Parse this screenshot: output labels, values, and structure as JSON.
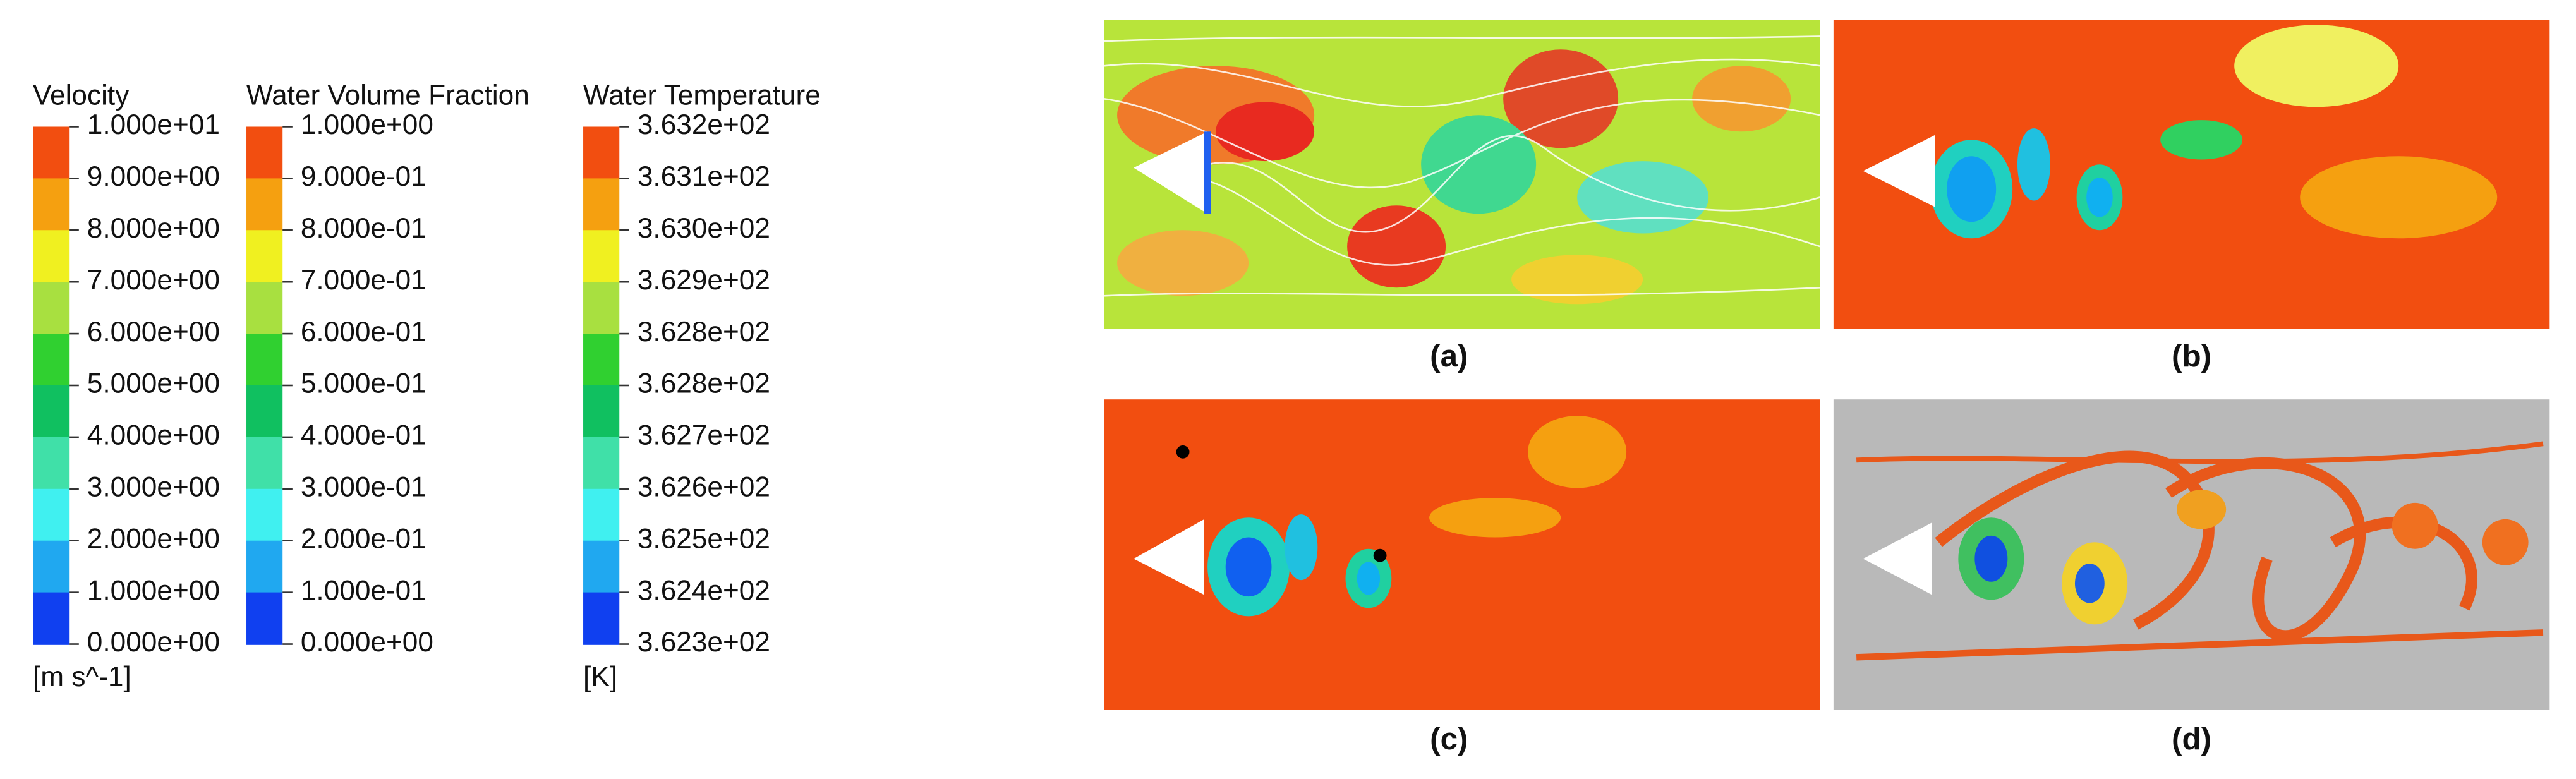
{
  "legends": [
    {
      "title": "Velocity",
      "labels": [
        "1.000e+01",
        "9.000e+00",
        "8.000e+00",
        "7.000e+00",
        "6.000e+00",
        "5.000e+00",
        "4.000e+00",
        "3.000e+00",
        "2.000e+00",
        "1.000e+00",
        "0.000e+00"
      ],
      "unit": "[m s^-1]"
    },
    {
      "title": "Water Volume Fraction",
      "labels": [
        "1.000e+00",
        "9.000e-01",
        "8.000e-01",
        "7.000e-01",
        "6.000e-01",
        "5.000e-01",
        "4.000e-01",
        "3.000e-01",
        "2.000e-01",
        "1.000e-01",
        "0.000e+00"
      ]
    },
    {
      "title": "Water Temperature",
      "labels": [
        "3.632e+02",
        "3.631e+02",
        "3.630e+02",
        "3.629e+02",
        "3.628e+02",
        "3.628e+02",
        "3.627e+02",
        "3.626e+02",
        "3.625e+02",
        "3.624e+02",
        "3.623e+02"
      ],
      "unit": "[K]"
    }
  ],
  "panels": [
    {
      "caption": "(a)"
    },
    {
      "caption": "(b)"
    },
    {
      "caption": "(c)"
    },
    {
      "caption": "(d)"
    }
  ]
}
